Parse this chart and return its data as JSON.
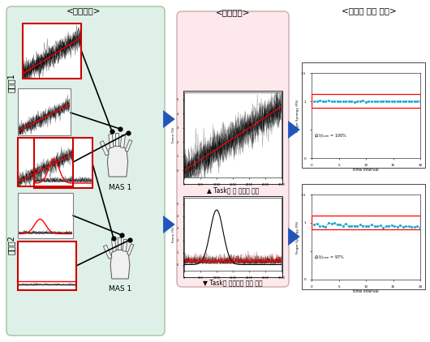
{
  "title_shimhaeng": "<실행변수>",
  "title_gyeolgwa": "<결과변수>",
  "title_gongdong": "<공동성 평가 결과>",
  "label_피험자1": "피험자1",
  "label_피험자2": "피험자2",
  "label_MAS1": "MAS 1",
  "label_task_good": "▲ Task를 잘 수행한 환자",
  "label_task_bad": "▼ Task를 수행하지 못한 환자",
  "label_100": "= 100%",
  "label_97": "= 97%",
  "bg_green": "#dff0e8",
  "bg_pink": "#fde8ec",
  "arrow_color": "#2255bb",
  "red_box_color": "#cc0000"
}
